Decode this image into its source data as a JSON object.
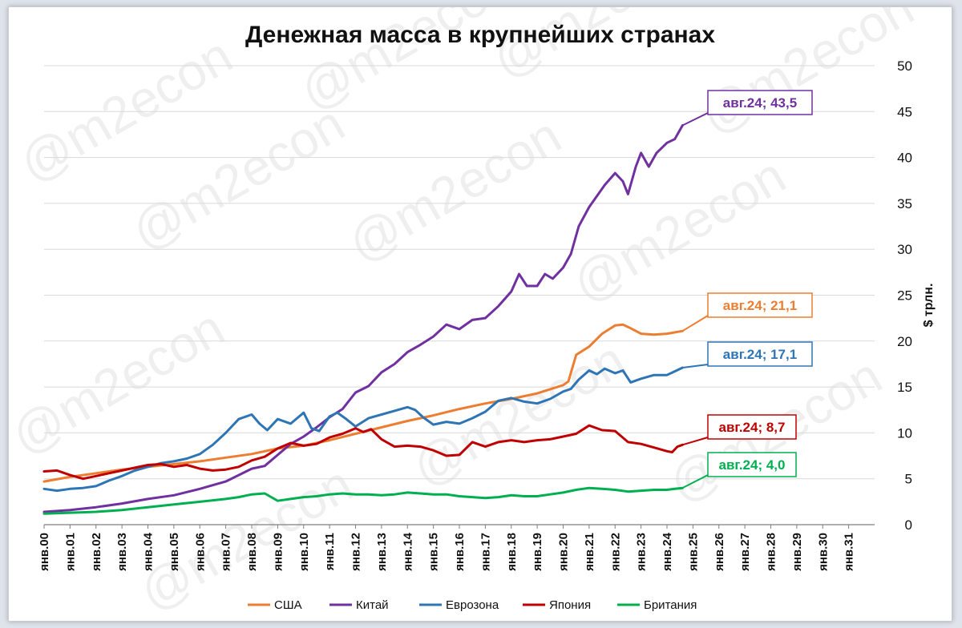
{
  "chart_data": {
    "type": "line",
    "title": "Денежная масса в крупнейших странах",
    "ylabel": "$ трлн.",
    "xlabel": "",
    "ylim": [
      0,
      50
    ],
    "yticks": [
      0,
      5,
      10,
      15,
      20,
      25,
      30,
      35,
      40,
      45,
      50
    ],
    "xlim": [
      2000,
      2032
    ],
    "categories": [
      "янв.00",
      "янв.01",
      "янв.02",
      "янв.03",
      "янв.04",
      "янв.05",
      "янв.06",
      "янв.07",
      "янв.08",
      "янв.09",
      "янв.10",
      "янв.11",
      "янв.12",
      "янв.13",
      "янв.14",
      "янв.15",
      "янв.16",
      "янв.17",
      "янв.18",
      "янв.19",
      "янв.20",
      "янв.21",
      "янв.22",
      "янв.23",
      "янв.24",
      "янв.25",
      "янв.26",
      "янв.27",
      "янв.28",
      "янв.29",
      "янв.30",
      "янв.31"
    ],
    "watermark": "@m2econ",
    "grid": true,
    "legend_position": "bottom",
    "series": [
      {
        "name": "США",
        "color": "#ED7D31",
        "x": [
          2000,
          2001,
          2002,
          2003,
          2004,
          2005,
          2006,
          2007,
          2008,
          2009,
          2010,
          2011,
          2012,
          2013,
          2014,
          2015,
          2016,
          2017,
          2018,
          2019,
          2020,
          2020.2,
          2020.5,
          2021,
          2021.5,
          2022,
          2022.3,
          2022.6,
          2023,
          2023.5,
          2024,
          2024.2,
          2024.4,
          2024.6
        ],
        "y": [
          4.7,
          5.2,
          5.6,
          6.0,
          6.3,
          6.6,
          6.9,
          7.3,
          7.7,
          8.3,
          8.6,
          9.2,
          9.9,
          10.6,
          11.3,
          11.9,
          12.6,
          13.2,
          13.7,
          14.3,
          15.2,
          15.6,
          18.5,
          19.4,
          20.8,
          21.7,
          21.8,
          21.4,
          20.8,
          20.7,
          20.8,
          20.9,
          21.0,
          21.1
        ],
        "callout": "авг.24; 21,1"
      },
      {
        "name": "Китай",
        "color": "#7030A0",
        "x": [
          2000,
          2001,
          2002,
          2003,
          2004,
          2005,
          2006,
          2007,
          2008,
          2008.5,
          2009,
          2009.5,
          2010,
          2010.5,
          2011,
          2011.5,
          2012,
          2012.5,
          2013,
          2013.5,
          2014,
          2014.5,
          2015,
          2015.5,
          2016,
          2016.5,
          2017,
          2017.5,
          2018,
          2018.3,
          2018.6,
          2019,
          2019.3,
          2019.6,
          2020,
          2020.3,
          2020.6,
          2021,
          2021.3,
          2021.6,
          2022,
          2022.3,
          2022.5,
          2022.8,
          2023,
          2023.3,
          2023.6,
          2024,
          2024.3,
          2024.6
        ],
        "y": [
          1.4,
          1.6,
          1.9,
          2.3,
          2.8,
          3.2,
          3.9,
          4.7,
          6.1,
          6.4,
          7.6,
          8.8,
          9.6,
          10.6,
          11.7,
          12.6,
          14.4,
          15.1,
          16.6,
          17.5,
          18.8,
          19.6,
          20.5,
          21.8,
          21.3,
          22.3,
          22.5,
          23.8,
          25.4,
          27.3,
          26.0,
          26.0,
          27.3,
          26.8,
          28.0,
          29.5,
          32.5,
          34.6,
          35.8,
          37.0,
          38.3,
          37.4,
          36.0,
          39.0,
          40.5,
          39.0,
          40.5,
          41.6,
          42.0,
          43.5
        ],
        "callout": "авг.24; 43,5"
      },
      {
        "name": "Еврозона",
        "color": "#2E75B6",
        "x": [
          2000,
          2000.5,
          2001,
          2001.5,
          2002,
          2002.5,
          2003,
          2003.5,
          2004,
          2004.5,
          2005,
          2005.5,
          2006,
          2006.5,
          2007,
          2007.5,
          2008,
          2008.3,
          2008.6,
          2009,
          2009.5,
          2010,
          2010.3,
          2010.6,
          2011,
          2011.3,
          2011.6,
          2012,
          2012.5,
          2013,
          2013.5,
          2014,
          2014.3,
          2014.6,
          2015,
          2015.5,
          2016,
          2016.5,
          2017,
          2017.5,
          2018,
          2018.5,
          2019,
          2019.5,
          2020,
          2020.3,
          2020.6,
          2021,
          2021.3,
          2021.6,
          2022,
          2022.3,
          2022.6,
          2023,
          2023.5,
          2024,
          2024.3,
          2024.6
        ],
        "y": [
          3.9,
          3.7,
          3.9,
          4.0,
          4.2,
          4.8,
          5.3,
          5.9,
          6.3,
          6.7,
          6.9,
          7.2,
          7.7,
          8.7,
          10.0,
          11.5,
          12.0,
          11.0,
          10.3,
          11.5,
          11.0,
          12.2,
          10.5,
          10.2,
          11.8,
          12.2,
          11.6,
          10.7,
          11.6,
          12.0,
          12.4,
          12.8,
          12.5,
          11.7,
          10.9,
          11.2,
          11.0,
          11.6,
          12.3,
          13.5,
          13.8,
          13.4,
          13.2,
          13.7,
          14.5,
          14.8,
          15.8,
          16.8,
          16.4,
          17.0,
          16.5,
          16.8,
          15.5,
          15.9,
          16.3,
          16.3,
          16.7,
          17.1
        ],
        "callout": "авг.24; 17,1"
      },
      {
        "name": "Япония",
        "color": "#C00000",
        "x": [
          2000,
          2000.5,
          2001,
          2001.5,
          2002,
          2002.5,
          2003,
          2003.5,
          2004,
          2004.5,
          2005,
          2005.5,
          2006,
          2006.5,
          2007,
          2007.5,
          2008,
          2008.5,
          2009,
          2009.5,
          2010,
          2010.5,
          2011,
          2011.5,
          2012,
          2012.3,
          2012.6,
          2013,
          2013.5,
          2014,
          2014.5,
          2015,
          2015.5,
          2016,
          2016.5,
          2017,
          2017.5,
          2018,
          2018.5,
          2019,
          2019.5,
          2020,
          2020.5,
          2021,
          2021.5,
          2022,
          2022.5,
          2023,
          2023.5,
          2024,
          2024.2,
          2024.4,
          2024.6
        ],
        "y": [
          5.8,
          5.9,
          5.4,
          5.0,
          5.3,
          5.6,
          5.9,
          6.2,
          6.5,
          6.6,
          6.3,
          6.5,
          6.1,
          5.9,
          6.0,
          6.3,
          7.0,
          7.4,
          8.3,
          8.9,
          8.6,
          8.8,
          9.5,
          9.9,
          10.5,
          10.1,
          10.4,
          9.3,
          8.5,
          8.6,
          8.5,
          8.1,
          7.5,
          7.6,
          9.0,
          8.5,
          9.0,
          9.2,
          9.0,
          9.2,
          9.3,
          9.6,
          9.9,
          10.8,
          10.3,
          10.2,
          9.0,
          8.8,
          8.4,
          8.0,
          7.9,
          8.5,
          8.7
        ],
        "callout": "авг.24; 8,7"
      },
      {
        "name": "Британия",
        "color": "#00B050",
        "x": [
          2000,
          2001,
          2002,
          2003,
          2004,
          2005,
          2006,
          2007,
          2007.5,
          2008,
          2008.5,
          2009,
          2009.5,
          2010,
          2010.5,
          2011,
          2011.5,
          2012,
          2012.5,
          2013,
          2013.5,
          2014,
          2014.5,
          2015,
          2015.5,
          2016,
          2016.5,
          2017,
          2017.5,
          2018,
          2018.5,
          2019,
          2019.5,
          2020,
          2020.5,
          2021,
          2021.5,
          2022,
          2022.5,
          2023,
          2023.5,
          2024,
          2024.3,
          2024.6
        ],
        "y": [
          1.2,
          1.3,
          1.4,
          1.6,
          1.9,
          2.2,
          2.5,
          2.8,
          3.0,
          3.3,
          3.4,
          2.6,
          2.8,
          3.0,
          3.1,
          3.3,
          3.4,
          3.3,
          3.3,
          3.2,
          3.3,
          3.5,
          3.4,
          3.3,
          3.3,
          3.1,
          3.0,
          2.9,
          3.0,
          3.2,
          3.1,
          3.1,
          3.3,
          3.5,
          3.8,
          4.0,
          3.9,
          3.8,
          3.6,
          3.7,
          3.8,
          3.8,
          3.9,
          4.0
        ],
        "callout": "авг.24; 4,0"
      }
    ]
  }
}
